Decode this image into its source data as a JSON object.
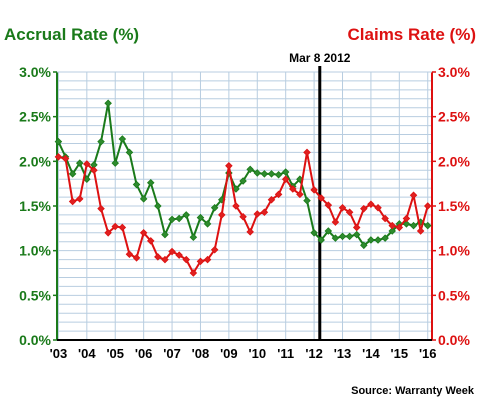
{
  "chart_data": {
    "type": "line",
    "left_title": "Accrual Rate (%)",
    "right_title": "Claims Rate (%)",
    "source": "Source: Warranty Week",
    "annotation": {
      "label": "Mar 8 2012",
      "x": 2012.2
    },
    "x_range": [
      2002.95,
      2016.15
    ],
    "y_range": [
      0,
      3
    ],
    "y_ticks": [
      "0.0%",
      "0.5%",
      "1.0%",
      "1.5%",
      "2.0%",
      "2.5%",
      "3.0%"
    ],
    "x_ticks": [
      "'03",
      "'04",
      "'05",
      "'06",
      "'07",
      "'08",
      "'09",
      "'10",
      "'11",
      "'12",
      "'13",
      "'14",
      "'15",
      "'16"
    ],
    "grid": true,
    "colors": {
      "accrual": "#1a7a1a",
      "claims": "#dd1111",
      "grid": "#b8cde0"
    },
    "series": [
      {
        "name": "Accrual Rate (%)",
        "axis": "left",
        "color": "#1a7a1a",
        "marker": "#2e8b2e",
        "x": [
          2003.0,
          2003.25,
          2003.5,
          2003.75,
          2004.0,
          2004.25,
          2004.5,
          2004.75,
          2005.0,
          2005.25,
          2005.5,
          2005.75,
          2006.0,
          2006.25,
          2006.5,
          2006.75,
          2007.0,
          2007.25,
          2007.5,
          2007.75,
          2008.0,
          2008.25,
          2008.5,
          2008.75,
          2009.0,
          2009.25,
          2009.5,
          2009.75,
          2010.0,
          2010.25,
          2010.5,
          2010.75,
          2011.0,
          2011.25,
          2011.5,
          2011.75,
          2012.0,
          2012.25,
          2012.5,
          2012.75,
          2013.0,
          2013.25,
          2013.5,
          2013.75,
          2014.0,
          2014.25,
          2014.5,
          2014.75,
          2015.0,
          2015.25,
          2015.5,
          2015.75,
          2016.0
        ],
        "values": [
          2.22,
          2.05,
          1.86,
          1.98,
          1.8,
          1.96,
          2.22,
          2.65,
          1.98,
          2.25,
          2.1,
          1.74,
          1.58,
          1.76,
          1.5,
          1.18,
          1.35,
          1.36,
          1.4,
          1.15,
          1.37,
          1.3,
          1.48,
          1.57,
          1.87,
          1.69,
          1.78,
          1.91,
          1.87,
          1.86,
          1.86,
          1.85,
          1.88,
          1.72,
          1.8,
          1.56,
          1.2,
          1.12,
          1.22,
          1.14,
          1.16,
          1.16,
          1.18,
          1.06,
          1.12,
          1.12,
          1.14,
          1.22,
          1.3,
          1.3,
          1.28,
          1.32,
          1.28
        ]
      },
      {
        "name": "Claims Rate (%)",
        "axis": "right",
        "color": "#dd1111",
        "marker": "#e02020",
        "x": [
          2003.0,
          2003.25,
          2003.5,
          2003.75,
          2004.0,
          2004.25,
          2004.5,
          2004.75,
          2005.0,
          2005.25,
          2005.5,
          2005.75,
          2006.0,
          2006.25,
          2006.5,
          2006.75,
          2007.0,
          2007.25,
          2007.5,
          2007.75,
          2008.0,
          2008.25,
          2008.5,
          2008.75,
          2009.0,
          2009.25,
          2009.5,
          2009.75,
          2010.0,
          2010.25,
          2010.5,
          2010.75,
          2011.0,
          2011.25,
          2011.5,
          2011.75,
          2012.0,
          2012.25,
          2012.5,
          2012.75,
          2013.0,
          2013.25,
          2013.5,
          2013.75,
          2014.0,
          2014.25,
          2014.5,
          2014.75,
          2015.0,
          2015.25,
          2015.5,
          2015.75,
          2016.0
        ],
        "values": [
          2.05,
          2.03,
          1.55,
          1.58,
          1.97,
          1.9,
          1.47,
          1.2,
          1.27,
          1.26,
          0.96,
          0.92,
          1.2,
          1.11,
          0.93,
          0.9,
          0.99,
          0.95,
          0.9,
          0.75,
          0.88,
          0.9,
          1.01,
          1.4,
          1.95,
          1.5,
          1.38,
          1.21,
          1.41,
          1.43,
          1.57,
          1.63,
          1.8,
          1.69,
          1.63,
          2.1,
          1.68,
          1.59,
          1.51,
          1.32,
          1.48,
          1.43,
          1.26,
          1.47,
          1.52,
          1.48,
          1.36,
          1.28,
          1.26,
          1.36,
          1.62,
          1.22,
          1.5
        ]
      }
    ]
  }
}
